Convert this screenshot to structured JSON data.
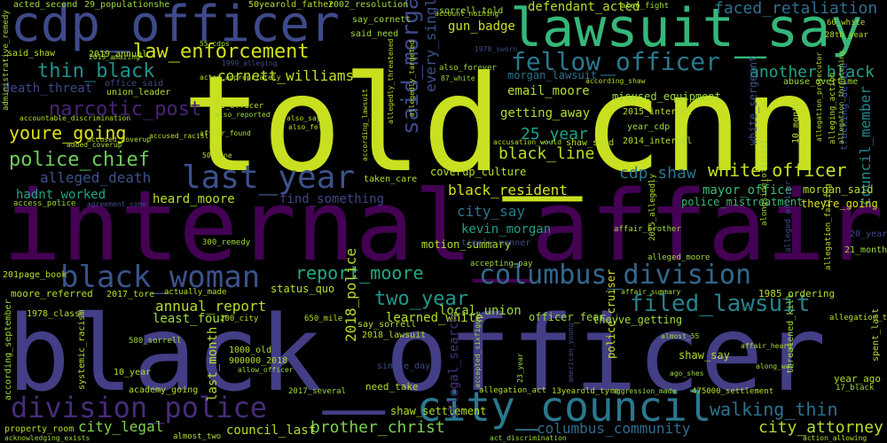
{
  "cloud": {
    "words": [
      {
        "text": "told_cnn",
        "color": "#c8e020"
      },
      {
        "text": "internal_affair",
        "color": "#440154"
      },
      {
        "text": "black_officer",
        "color": "#433e85"
      },
      {
        "text": "cdp_officer",
        "color": "#3e4a89"
      },
      {
        "text": "lawsuit_say",
        "color": "#35b779"
      },
      {
        "text": "city_council",
        "color": "#2a788e"
      },
      {
        "text": "columbus_division",
        "color": "#31688e"
      },
      {
        "text": "black_woman",
        "color": "#3b528b"
      },
      {
        "text": "division_police",
        "color": "#472c7a"
      },
      {
        "text": "filed_lawsuit",
        "color": "#26828e"
      },
      {
        "text": "last_year",
        "color": "#3b528b"
      },
      {
        "text": "fellow_officer",
        "color": "#2a788e"
      },
      {
        "text": "law_enforcement",
        "color": "#d2e21b"
      },
      {
        "text": "police_chief",
        "color": "#6ccd5a"
      },
      {
        "text": "narcotic_post",
        "color": "#482475"
      },
      {
        "text": "youre_going",
        "color": "#dde318"
      },
      {
        "text": "thin_black",
        "color": "#21918c"
      },
      {
        "text": "cornett_williams",
        "color": "#c2df23"
      },
      {
        "text": "said_morgan",
        "color": "#3e4989"
      },
      {
        "text": "report_moore",
        "color": "#22a884"
      },
      {
        "text": "two_year",
        "color": "#1f988b"
      },
      {
        "text": "annual_report",
        "color": "#b8de29"
      },
      {
        "text": "white_officer",
        "color": "#c5e021"
      },
      {
        "text": "another_black",
        "color": "#1fa187"
      },
      {
        "text": "walking_thin",
        "color": "#2c728e"
      },
      {
        "text": "city_attorney",
        "color": "#b5de2b"
      },
      {
        "text": "brother_christ",
        "color": "#7ad151"
      },
      {
        "text": "city_legal",
        "color": "#7fd34e"
      },
      {
        "text": "columbus_community",
        "color": "#2f6c8e"
      },
      {
        "text": "black_resident",
        "color": "#d5e21a"
      },
      {
        "text": "black_line",
        "color": "#bddf26"
      },
      {
        "text": "cdp_shaw",
        "color": "#2a778e"
      },
      {
        "text": "city_say",
        "color": "#2a788e"
      },
      {
        "text": "kevin_morgan",
        "color": "#1f9e89"
      },
      {
        "text": "alleged_death",
        "color": "#3b528b"
      },
      {
        "text": "heard_moore",
        "color": "#b5de2b"
      },
      {
        "text": "find_something",
        "color": "#414487"
      },
      {
        "text": "gun_badge",
        "color": "#cde11d"
      },
      {
        "text": "defendant_acted",
        "color": "#b5de2b"
      },
      {
        "text": "email_moore",
        "color": "#b2dd2d"
      },
      {
        "text": "25_year",
        "color": "#1fa088"
      },
      {
        "text": "getting_away",
        "color": "#b0dd2f"
      },
      {
        "text": "morgan_lawsuit",
        "color": "#2c728e"
      },
      {
        "text": "faced_retaliation",
        "color": "#2d708e"
      },
      {
        "text": "council_member",
        "color": "#24868e"
      },
      {
        "text": "death_threat",
        "color": "#3f4788"
      },
      {
        "text": "hadnt_worked",
        "color": "#20a386"
      },
      {
        "text": "2018_police",
        "color": "#b5de2b"
      },
      {
        "text": "local_union",
        "color": "#9fda3a"
      },
      {
        "text": "officer_fear",
        "color": "#9fda3a"
      },
      {
        "text": "last_month",
        "color": "#b5de2b"
      },
      {
        "text": "least_four",
        "color": "#9fda3a"
      },
      {
        "text": "council_last",
        "color": "#b5de2b"
      },
      {
        "text": "shaw_settlement",
        "color": "#b5de2b"
      },
      {
        "text": "mayor_office",
        "color": "#3aba76"
      },
      {
        "text": "police_mistreatment",
        "color": "#3aba76"
      },
      {
        "text": "coverup_culture",
        "color": "#b5de2b"
      },
      {
        "text": "learned_white",
        "color": "#b5de2b"
      },
      {
        "text": "illegal_search",
        "color": "#46327e"
      },
      {
        "text": "every_single",
        "color": "#3b528b"
      },
      {
        "text": "status_quo",
        "color": "#b5de2b"
      },
      {
        "text": "motion_summary",
        "color": "#b5de2b"
      },
      {
        "text": "shaw_say",
        "color": "#b5de2b"
      },
      {
        "text": "year_cdp",
        "color": "#9fda3a"
      },
      {
        "text": "police_cruiser",
        "color": "#d0e11c"
      },
      {
        "text": "white_sergeant",
        "color": "#3b528b"
      },
      {
        "text": "tracking_device",
        "color": "#3b528b"
      },
      {
        "text": "theyre_going",
        "color": "#dde318"
      },
      {
        "text": "misused_equipment",
        "color": "#9fda3a"
      },
      {
        "text": "1985_ordering",
        "color": "#b5de2b"
      },
      {
        "text": "theyve_getting",
        "color": "#9fda3a"
      },
      {
        "text": "2015_internal",
        "color": "#b5de2b"
      },
      {
        "text": "sorrell_told",
        "color": "#9fda3a"
      },
      {
        "text": "said_need",
        "color": "#9fda3a"
      },
      {
        "text": "say_cornett",
        "color": "#9fda3a"
      },
      {
        "text": "50yearold_father",
        "color": "#b5de2b"
      },
      {
        "text": "2002_resolution",
        "color": "#9fda3a"
      },
      {
        "text": "acted_second",
        "color": "#9fda3a"
      },
      {
        "text": "29_populationshe",
        "color": "#9fda3a"
      },
      {
        "text": "also_fight",
        "color": "#9fda3a"
      },
      {
        "text": "said_shaw",
        "color": "#b5de2b"
      },
      {
        "text": "2019_annual",
        "color": "#b5de2b"
      },
      {
        "text": "office_said",
        "color": "#3e4a89"
      },
      {
        "text": "union_leader",
        "color": "#b5de2b"
      },
      {
        "text": "51_officer",
        "color": "#b5de2b"
      },
      {
        "text": "accused_racist",
        "color": "#b5de2b"
      },
      {
        "text": "affair_found",
        "color": "#b5de2b"
      },
      {
        "text": "accountable_discrimination",
        "color": "#b5de2b"
      },
      {
        "text": "added_coverup",
        "color": "#b5de2b"
      },
      {
        "text": "access_police",
        "color": "#9fda3a"
      },
      {
        "text": "agreement_come",
        "color": "#3e4a89"
      },
      {
        "text": "taken_care",
        "color": "#b5de2b"
      },
      {
        "text": "accusation_would",
        "color": "#b5de2b"
      },
      {
        "text": "shaw_said",
        "color": "#b5de2b"
      },
      {
        "text": "2014_internal",
        "color": "#b5de2b"
      },
      {
        "text": "abuse_overtime",
        "color": "#9fda3a"
      },
      {
        "text": "28th_year",
        "color": "#b5de2b"
      },
      {
        "text": "60_white",
        "color": "#b5de2b"
      },
      {
        "text": "10_month",
        "color": "#b5de2b"
      },
      {
        "text": "morgan_said",
        "color": "#b5de2b"
      },
      {
        "text": "20_year",
        "color": "#3e4a89"
      },
      {
        "text": "21_month",
        "color": "#9fda3a"
      },
      {
        "text": "administrative_remedy",
        "color": "#9fda3a"
      },
      {
        "text": "300_remedy",
        "color": "#9fda3a"
      },
      {
        "text": "affair_brother",
        "color": "#9fda3a"
      },
      {
        "text": "alleged_moore",
        "color": "#9fda3a"
      },
      {
        "text": "accepting_pay",
        "color": "#9fda3a"
      },
      {
        "text": "timely_manner",
        "color": "#3e4a89"
      },
      {
        "text": "201page_book",
        "color": "#b5de2b"
      },
      {
        "text": "moore_referred",
        "color": "#b5de2b"
      },
      {
        "text": "2017_tore",
        "color": "#b5de2b"
      },
      {
        "text": "actually_made",
        "color": "#b5de2b"
      },
      {
        "text": "200_city",
        "color": "#b5de2b"
      },
      {
        "text": "650_mile",
        "color": "#b5de2b"
      },
      {
        "text": "1978_class",
        "color": "#b5de2b"
      },
      {
        "text": "according_september",
        "color": "#9fda3a"
      },
      {
        "text": "systemic_racism",
        "color": "#b5de2b"
      },
      {
        "text": "580_sorrell",
        "color": "#9fda3a"
      },
      {
        "text": "1000_old",
        "color": "#b5de2b"
      },
      {
        "text": "900000_2018",
        "color": "#b5de2b"
      },
      {
        "text": "allow_officer",
        "color": "#9fda3a"
      },
      {
        "text": "10_year",
        "color": "#b5de2b"
      },
      {
        "text": "academy_going",
        "color": "#b5de2b"
      },
      {
        "text": "property_room",
        "color": "#b5de2b"
      },
      {
        "text": "almost_two",
        "color": "#b5de2b"
      },
      {
        "text": "need_take",
        "color": "#b5de2b"
      },
      {
        "text": "2017_several",
        "color": "#9fda3a"
      },
      {
        "text": "allegation_act",
        "color": "#b5de2b"
      },
      {
        "text": "13yearold_tyre",
        "color": "#b5de2b"
      },
      {
        "text": "aggression_made",
        "color": "#9fda3a"
      },
      {
        "text": "475000_settlement",
        "color": "#b5de2b"
      },
      {
        "text": "along_way",
        "color": "#9fda3a"
      },
      {
        "text": "affair_heard",
        "color": "#b5de2b"
      },
      {
        "text": "ago_shes",
        "color": "#9fda3a"
      },
      {
        "text": "almost_55",
        "color": "#9fda3a"
      },
      {
        "text": "act_discrimination",
        "color": "#9fda3a"
      },
      {
        "text": "action_allowing",
        "color": "#b5de2b"
      },
      {
        "text": "acknowledging_exists",
        "color": "#9fda3a"
      },
      {
        "text": "year_ago",
        "color": "#b5de2b"
      },
      {
        "text": "17_black",
        "color": "#9fda3a"
      },
      {
        "text": "spent_last",
        "color": "#b5de2b"
      },
      {
        "text": "affair_summary",
        "color": "#9fda3a"
      },
      {
        "text": "allegation_threat",
        "color": "#b5de2b"
      },
      {
        "text": "2018_lawsuit",
        "color": "#b5de2b"
      },
      {
        "text": "say_sorrell",
        "color": "#b5de2b"
      },
      {
        "text": "single_day",
        "color": "#3e4a89"
      },
      {
        "text": "account_nothing",
        "color": "#b5de2b"
      },
      {
        "text": "87_white",
        "color": "#9fda3a"
      },
      {
        "text": "1978_sworn",
        "color": "#3e4a89"
      },
      {
        "text": "also_forever",
        "color": "#9fda3a"
      },
      {
        "text": "according_shaw",
        "color": "#b5de2b"
      },
      {
        "text": "threatened_kill",
        "color": "#9fda3a"
      },
      {
        "text": "according_lawsuit",
        "color": "#b5de2b"
      },
      {
        "text": "allegation_abuse",
        "color": "#b5de2b"
      },
      {
        "text": "allegedly_threatened",
        "color": "#b5de2b"
      },
      {
        "text": "allegedly_targeted",
        "color": "#b5de2b"
      },
      {
        "text": "2015_allegedly",
        "color": "#b5de2b"
      },
      {
        "text": "alleged_officer",
        "color": "#3e4a89"
      },
      {
        "text": "american_young",
        "color": "#3e4a89"
      },
      {
        "text": "accepted_sixfigure",
        "color": "#9fda3a"
      },
      {
        "text": "23_year",
        "color": "#9fda3a"
      },
      {
        "text": "acted_appropriately",
        "color": "#b5de2b"
      },
      {
        "text": "1999_alleging",
        "color": "#3e4a89"
      },
      {
        "text": "2019_amazing",
        "color": "#9fda3a"
      },
      {
        "text": "55_cdps",
        "color": "#9fda3a"
      },
      {
        "text": "also_reported",
        "color": "#9fda3a"
      },
      {
        "text": "also_felt",
        "color": "#b5de2b"
      },
      {
        "text": "also_say",
        "color": "#b5de2b"
      },
      {
        "text": "accused_coverup",
        "color": "#b5de2b"
      },
      {
        "text": "50_fine",
        "color": "#b5de2b"
      },
      {
        "text": "alleging_action",
        "color": "#b5de2b"
      },
      {
        "text": "allegation_prosecutor",
        "color": "#b5de2b"
      },
      {
        "text": "alongside_official",
        "color": "#9fda3a"
      },
      {
        "text": "allegation_failing",
        "color": "#b5de2b"
      },
      {
        "text": "allegation_threatening",
        "color": "#9fda3a"
      }
    ]
  }
}
